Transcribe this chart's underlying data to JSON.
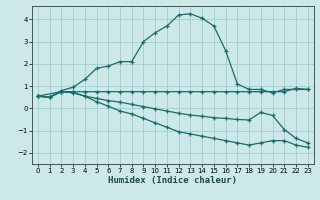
{
  "xlabel": "Humidex (Indice chaleur)",
  "xlim": [
    -0.5,
    23.5
  ],
  "ylim": [
    -2.5,
    4.6
  ],
  "yticks": [
    -2,
    -1,
    0,
    1,
    2,
    3,
    4
  ],
  "xticks": [
    0,
    1,
    2,
    3,
    4,
    5,
    6,
    7,
    8,
    9,
    10,
    11,
    12,
    13,
    14,
    15,
    16,
    17,
    18,
    19,
    20,
    21,
    22,
    23
  ],
  "bg_color": "#cde8e8",
  "grid_color": "#9ecece",
  "line_color": "#1a6b6b",
  "series": [
    {
      "x": [
        0,
        1,
        2,
        3,
        4,
        5,
        6,
        7,
        8,
        9,
        10,
        11,
        12,
        13,
        14,
        15,
        16,
        17,
        18,
        19,
        20,
        21,
        22,
        23
      ],
      "y": [
        0.55,
        0.5,
        0.75,
        0.75,
        0.75,
        0.75,
        0.75,
        0.75,
        0.75,
        0.75,
        0.75,
        0.75,
        0.75,
        0.75,
        0.75,
        0.75,
        0.75,
        0.75,
        0.75,
        0.75,
        0.75,
        0.75,
        0.9,
        0.85
      ]
    },
    {
      "x": [
        0,
        1,
        2,
        3,
        4,
        5,
        6,
        7,
        8,
        9,
        10,
        11,
        12,
        13,
        14,
        15,
        16,
        17,
        18,
        19,
        20,
        21,
        22,
        23
      ],
      "y": [
        0.55,
        0.5,
        0.8,
        0.95,
        1.3,
        1.8,
        1.9,
        2.1,
        2.1,
        3.0,
        3.4,
        3.7,
        4.2,
        4.25,
        4.05,
        3.7,
        2.6,
        1.1,
        0.85,
        0.85,
        0.7,
        0.85,
        0.85,
        0.85
      ]
    },
    {
      "x": [
        0,
        1,
        2,
        3,
        4,
        5,
        6,
        7,
        8,
        9,
        10,
        11,
        12,
        13,
        14,
        15,
        16,
        17,
        18,
        19,
        20,
        21,
        22,
        23
      ],
      "y": [
        0.55,
        0.5,
        0.75,
        0.72,
        0.55,
        0.45,
        0.35,
        0.28,
        0.18,
        0.08,
        -0.02,
        -0.12,
        -0.22,
        -0.3,
        -0.35,
        -0.42,
        -0.45,
        -0.5,
        -0.52,
        -0.18,
        -0.32,
        -0.95,
        -1.35,
        -1.55
      ]
    },
    {
      "x": [
        0,
        2,
        3,
        4,
        5,
        6,
        7,
        8,
        9,
        10,
        11,
        12,
        13,
        14,
        15,
        16,
        17,
        18,
        19,
        20,
        21,
        22,
        23
      ],
      "y": [
        0.55,
        0.75,
        0.7,
        0.55,
        0.3,
        0.1,
        -0.12,
        -0.25,
        -0.45,
        -0.65,
        -0.85,
        -1.05,
        -1.15,
        -1.25,
        -1.35,
        -1.45,
        -1.55,
        -1.65,
        -1.55,
        -1.45,
        -1.45,
        -1.65,
        -1.75
      ]
    }
  ]
}
